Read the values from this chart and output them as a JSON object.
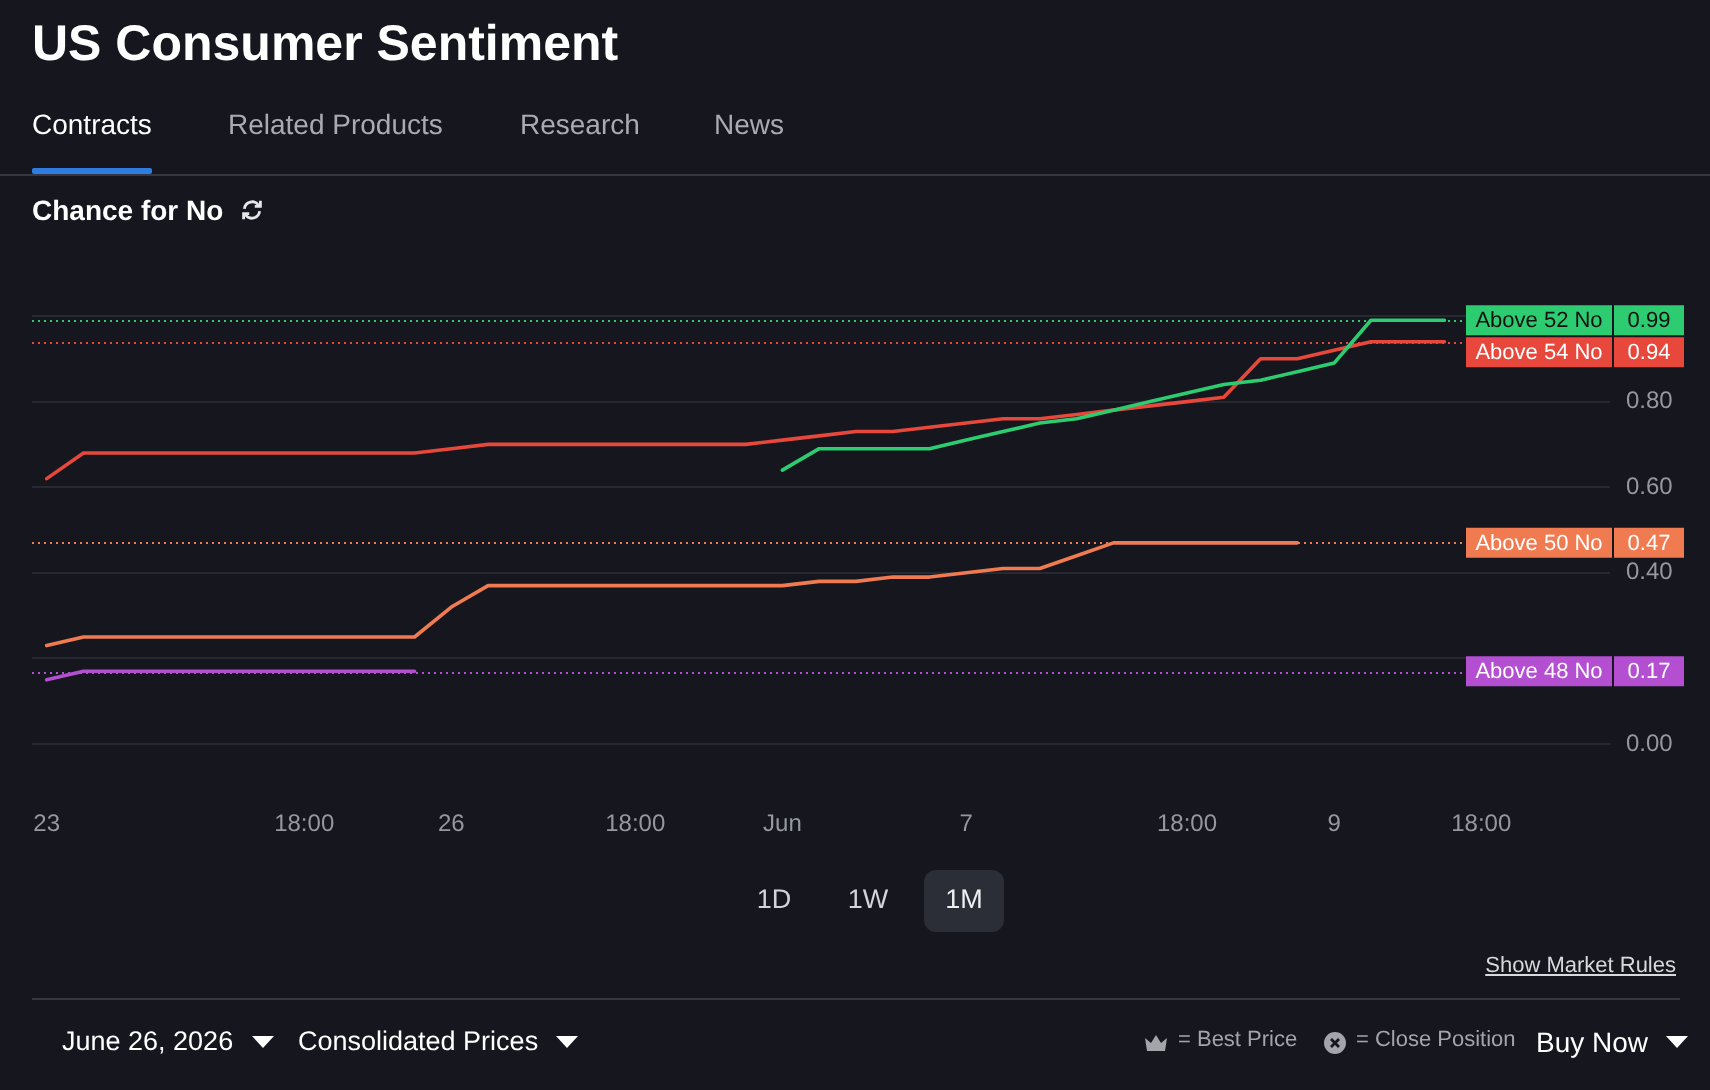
{
  "chart_data": {
    "type": "line",
    "title": "US Consumer Sentiment",
    "subtitle": "Chance for No",
    "annotations": [
      "Contracts",
      "Related Products",
      "Research",
      "News",
      "1D",
      "1W",
      "1M",
      "Show Market Rules",
      "June 26, 2026",
      "Consolidated Prices",
      "= Best Price",
      "= Close Position",
      "Buy Now"
    ],
    "categories": [
      "23",
      null,
      null,
      null,
      null,
      null,
      null,
      "18:00",
      null,
      null,
      null,
      "26",
      null,
      null,
      null,
      null,
      "18:00",
      null,
      null,
      null,
      "Jun",
      null,
      null,
      null,
      null,
      "7",
      null,
      null,
      null,
      null,
      null,
      "18:00",
      null,
      null,
      null,
      "9",
      null,
      null,
      null,
      "18:00"
    ],
    "ylim": [
      0,
      1
    ],
    "yticks": [
      {
        "value": 0,
        "label": "0.00"
      },
      {
        "value": 0.2,
        "label": null
      },
      {
        "value": 0.4,
        "label": "0.40"
      },
      {
        "value": 0.6,
        "label": "0.60"
      },
      {
        "value": 0.8,
        "label": "0.80"
      },
      {
        "value": 1,
        "label": null
      }
    ],
    "grid": "y",
    "marker": "none",
    "line_style": "solid",
    "legend": "right",
    "series": [
      {
        "name": "Above 52 No",
        "color": "#2ecc71",
        "values": [
          null,
          null,
          null,
          null,
          null,
          null,
          null,
          null,
          null,
          null,
          null,
          null,
          null,
          null,
          null,
          null,
          null,
          null,
          null,
          null,
          0.64,
          0.69,
          0.69,
          0.69,
          0.69,
          0.71,
          0.73,
          0.75,
          0.76,
          0.78,
          0.8,
          0.82,
          0.84,
          0.85,
          0.87,
          0.89,
          0.99,
          0.99,
          0.99,
          null
        ]
      },
      {
        "name": "Above 54 No",
        "color": "#e8473b",
        "values": [
          0.62,
          0.68,
          0.68,
          0.68,
          0.68,
          0.68,
          0.68,
          0.68,
          0.68,
          0.68,
          0.68,
          0.69,
          0.7,
          0.7,
          0.7,
          0.7,
          0.7,
          0.7,
          0.7,
          0.7,
          0.71,
          0.72,
          0.73,
          0.73,
          0.74,
          0.75,
          0.76,
          0.76,
          0.77,
          0.78,
          0.79,
          0.8,
          0.81,
          0.9,
          0.9,
          0.92,
          0.94,
          0.94,
          0.94,
          null
        ]
      },
      {
        "name": "Above 50 No",
        "color": "#f07b50",
        "values": [
          0.23,
          0.25,
          0.25,
          0.25,
          0.25,
          0.25,
          0.25,
          0.25,
          0.25,
          0.25,
          0.25,
          0.32,
          0.37,
          0.37,
          0.37,
          0.37,
          0.37,
          0.37,
          0.37,
          0.37,
          0.37,
          0.38,
          0.38,
          0.39,
          0.39,
          0.4,
          0.41,
          0.41,
          0.44,
          0.47,
          0.47,
          0.47,
          0.47,
          0.47,
          0.47,
          null,
          null,
          null,
          null,
          null
        ]
      },
      {
        "name": "Above 48 No",
        "color": "#b34fd0",
        "values": [
          0.15,
          0.17,
          0.17,
          0.17,
          0.17,
          0.17,
          0.17,
          0.17,
          0.17,
          0.17,
          0.17,
          null,
          null,
          null,
          null,
          null,
          null,
          null,
          null,
          null,
          null,
          null,
          null,
          null,
          null,
          null,
          null,
          null,
          null,
          null,
          null,
          null,
          null,
          null,
          null,
          null,
          null,
          null,
          null,
          null
        ]
      }
    ],
    "ref_lines": [
      {
        "axis": "y",
        "value": 0.99,
        "label": "0.99",
        "color": "#2ecc71",
        "line_style": "dotted"
      },
      {
        "axis": "y",
        "value": 0.94,
        "label": "0.94",
        "color": "#e8473b",
        "line_style": "dotted"
      },
      {
        "axis": "y",
        "value": 0.47,
        "label": "0.47",
        "color": "#f07b50",
        "line_style": "dotted"
      },
      {
        "axis": "y",
        "value": 0.17,
        "label": "0.17",
        "color": "#b34fd0",
        "line_style": "dotted"
      }
    ]
  }
}
